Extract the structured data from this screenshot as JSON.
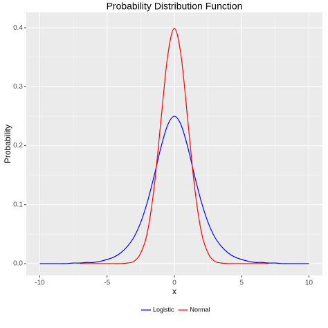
{
  "chart_data": {
    "type": "line",
    "title": "Probability Distribution Function",
    "x_label": "x",
    "y_label": "Probability",
    "x": [
      -10,
      -9.5,
      -9,
      -8.5,
      -8,
      -7.5,
      -7,
      -6.5,
      -6,
      -5.5,
      -5,
      -4.5,
      -4,
      -3.5,
      -3,
      -2.5,
      -2,
      -1.5,
      -1,
      -0.5,
      0,
      0.5,
      1,
      1.5,
      2,
      2.5,
      3,
      3.5,
      4,
      4.5,
      5,
      5.5,
      6,
      6.5,
      7,
      7.5,
      8,
      8.5,
      9,
      9.5,
      10
    ],
    "series": [
      {
        "name": "Logistic",
        "color": "#0000ff",
        "values": [
          0,
          0,
          0,
          0,
          0,
          0.001,
          0.001,
          0.002,
          0.002,
          0.004,
          0.007,
          0.011,
          0.018,
          0.029,
          0.045,
          0.07,
          0.105,
          0.149,
          0.197,
          0.235,
          0.25,
          0.235,
          0.197,
          0.149,
          0.105,
          0.07,
          0.045,
          0.029,
          0.018,
          0.011,
          0.007,
          0.004,
          0.002,
          0.002,
          0.001,
          0.001,
          0,
          0,
          0,
          0,
          0
        ]
      },
      {
        "name": "Normal",
        "color": "#ff0000",
        "values": [
          null,
          null,
          null,
          null,
          null,
          null,
          0,
          0,
          0,
          0,
          0,
          0,
          0,
          0.001,
          0.004,
          0.018,
          0.054,
          0.13,
          0.242,
          0.352,
          0.399,
          0.352,
          0.242,
          0.13,
          0.054,
          0.018,
          0.004,
          0.001,
          0,
          0,
          0,
          0,
          0,
          0,
          0,
          null,
          null,
          null,
          null,
          null,
          null
        ]
      }
    ],
    "xlim": [
      -11,
      11
    ],
    "xticks": [
      -10,
      -5,
      0,
      5,
      10
    ],
    "ylim": [
      -0.02,
      0.426
    ],
    "yticks": [
      {
        "value": 0,
        "label": "0.0"
      },
      0.1,
      0.2,
      0.3,
      0.4
    ],
    "grid": true,
    "legend": "bottom"
  }
}
